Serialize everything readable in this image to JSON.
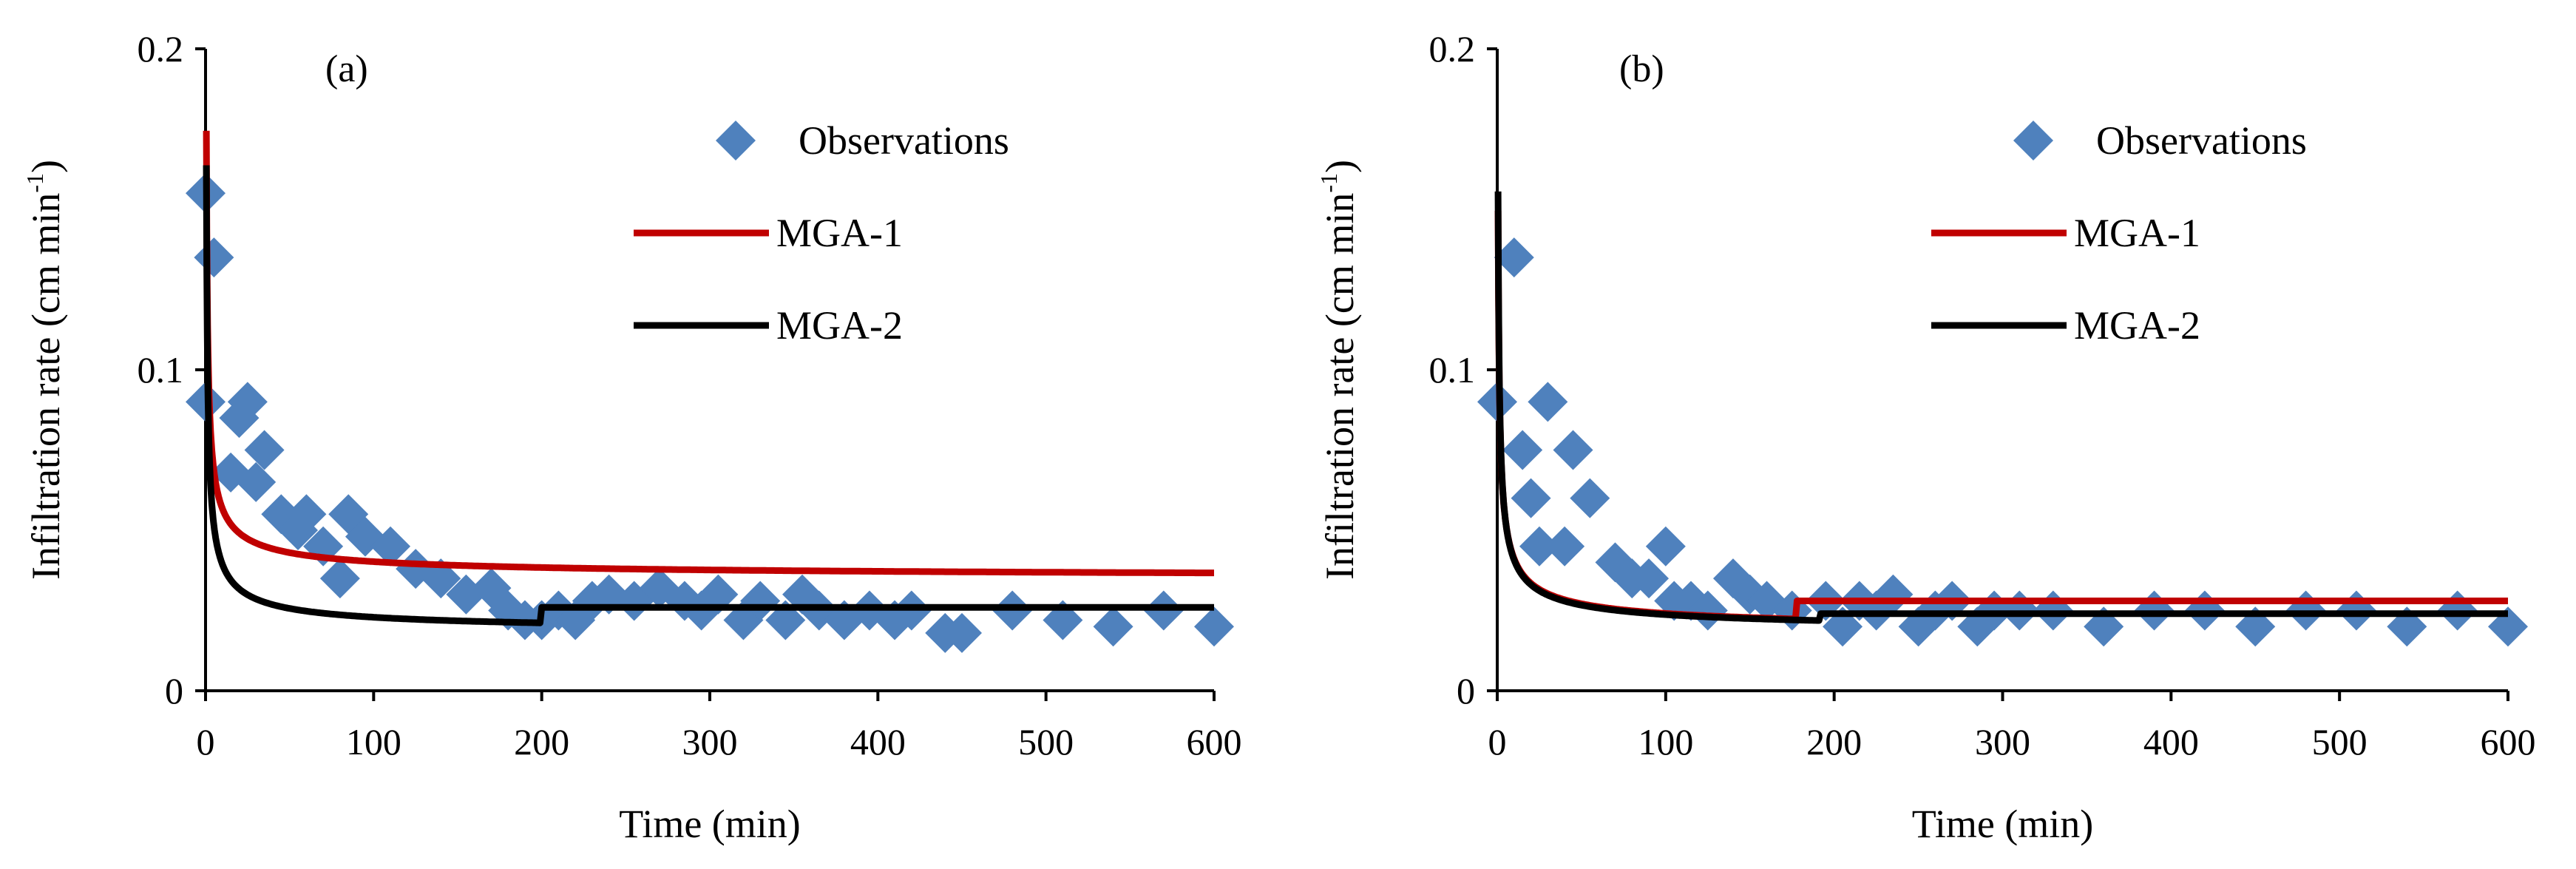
{
  "colors": {
    "observations": "#4f81bd",
    "mga1": "#c00000",
    "mga2": "#000000",
    "axis": "#000000"
  },
  "chart_data": [
    {
      "type": "scatter",
      "panel_label": "(a)",
      "xlabel": "Time (min)",
      "ylabel_main": "Infiltration rate (cm min",
      "ylabel_sup": "-1",
      "ylabel_close": ")",
      "xlim": [
        0,
        600
      ],
      "ylim": [
        0,
        0.2
      ],
      "xticks": [
        0,
        100,
        200,
        300,
        400,
        500,
        600
      ],
      "xtick_labels": [
        "0",
        "100",
        "200",
        "300",
        "400",
        "500",
        "600"
      ],
      "yticks": [
        0,
        0.1,
        0.2
      ],
      "ytick_labels": [
        "0",
        "0.1",
        "0.2"
      ],
      "legend_position": "top-right",
      "legend": [
        "Observations",
        "MGA-1",
        "MGA-2"
      ],
      "series": [
        {
          "name": "Observations",
          "marker": "diamond",
          "points": [
            [
              0,
              0.155
            ],
            [
              0,
              0.09
            ],
            [
              5,
              0.135
            ],
            [
              15,
              0.068
            ],
            [
              20,
              0.085
            ],
            [
              25,
              0.09
            ],
            [
              30,
              0.065
            ],
            [
              35,
              0.075
            ],
            [
              45,
              0.055
            ],
            [
              55,
              0.05
            ],
            [
              60,
              0.055
            ],
            [
              70,
              0.045
            ],
            [
              80,
              0.035
            ],
            [
              85,
              0.055
            ],
            [
              95,
              0.048
            ],
            [
              110,
              0.045
            ],
            [
              125,
              0.038
            ],
            [
              140,
              0.035
            ],
            [
              155,
              0.03
            ],
            [
              170,
              0.032
            ],
            [
              180,
              0.025
            ],
            [
              190,
              0.022
            ],
            [
              200,
              0.022
            ],
            [
              210,
              0.025
            ],
            [
              220,
              0.022
            ],
            [
              230,
              0.028
            ],
            [
              240,
              0.03
            ],
            [
              255,
              0.028
            ],
            [
              270,
              0.032
            ],
            [
              285,
              0.028
            ],
            [
              295,
              0.025
            ],
            [
              305,
              0.03
            ],
            [
              320,
              0.022
            ],
            [
              330,
              0.028
            ],
            [
              345,
              0.022
            ],
            [
              355,
              0.03
            ],
            [
              365,
              0.025
            ],
            [
              380,
              0.022
            ],
            [
              395,
              0.025
            ],
            [
              410,
              0.022
            ],
            [
              420,
              0.025
            ],
            [
              440,
              0.018
            ],
            [
              450,
              0.018
            ],
            [
              480,
              0.025
            ],
            [
              510,
              0.022
            ],
            [
              540,
              0.02
            ],
            [
              570,
              0.025
            ],
            [
              600,
              0.02
            ]
          ]
        },
        {
          "name": "MGA-1",
          "model": {
            "a": 0.165,
            "b": 0.62,
            "floor": 0.035,
            "step_at": null,
            "step_to": null
          }
        },
        {
          "name": "MGA-2",
          "model": {
            "a": 0.17,
            "b": 0.64,
            "floor": 0.0,
            "step_at": 200,
            "step_to": 0.026
          }
        }
      ]
    },
    {
      "type": "scatter",
      "panel_label": "(b)",
      "xlabel": "Time (min)",
      "ylabel_main": "Infiltration rate (cm min",
      "ylabel_sup": "-1",
      "ylabel_close": ")",
      "xlim": [
        0,
        600
      ],
      "ylim": [
        0,
        0.2
      ],
      "xticks": [
        0,
        100,
        200,
        300,
        400,
        500,
        600
      ],
      "xtick_labels": [
        "0",
        "100",
        "200",
        "300",
        "400",
        "500",
        "600"
      ],
      "yticks": [
        0,
        0.1,
        0.2
      ],
      "ytick_labels": [
        "0",
        "0.1",
        "0.2"
      ],
      "legend_position": "top-right",
      "legend": [
        "Observations",
        "MGA-1",
        "MGA-2"
      ],
      "series": [
        {
          "name": "Observations",
          "marker": "diamond",
          "points": [
            [
              0,
              0.09
            ],
            [
              10,
              0.135
            ],
            [
              15,
              0.075
            ],
            [
              20,
              0.06
            ],
            [
              25,
              0.045
            ],
            [
              30,
              0.09
            ],
            [
              40,
              0.045
            ],
            [
              45,
              0.075
            ],
            [
              55,
              0.06
            ],
            [
              70,
              0.04
            ],
            [
              80,
              0.035
            ],
            [
              90,
              0.035
            ],
            [
              100,
              0.045
            ],
            [
              105,
              0.028
            ],
            [
              115,
              0.028
            ],
            [
              125,
              0.025
            ],
            [
              140,
              0.035
            ],
            [
              150,
              0.03
            ],
            [
              160,
              0.028
            ],
            [
              175,
              0.025
            ],
            [
              195,
              0.028
            ],
            [
              205,
              0.02
            ],
            [
              215,
              0.028
            ],
            [
              225,
              0.025
            ],
            [
              235,
              0.03
            ],
            [
              250,
              0.02
            ],
            [
              260,
              0.025
            ],
            [
              270,
              0.028
            ],
            [
              285,
              0.02
            ],
            [
              295,
              0.025
            ],
            [
              310,
              0.025
            ],
            [
              330,
              0.025
            ],
            [
              360,
              0.02
            ],
            [
              390,
              0.025
            ],
            [
              420,
              0.025
            ],
            [
              450,
              0.02
            ],
            [
              480,
              0.025
            ],
            [
              510,
              0.025
            ],
            [
              540,
              0.02
            ],
            [
              570,
              0.025
            ],
            [
              600,
              0.02
            ]
          ]
        },
        {
          "name": "MGA-1",
          "model": {
            "a": 0.16,
            "b": 0.58,
            "floor": 0.0,
            "step_at": 178,
            "step_to": 0.028
          }
        },
        {
          "name": "MGA-2",
          "model": {
            "a": 0.165,
            "b": 0.6,
            "floor": 0.0,
            "step_at": 192,
            "step_to": 0.024
          }
        }
      ]
    }
  ]
}
